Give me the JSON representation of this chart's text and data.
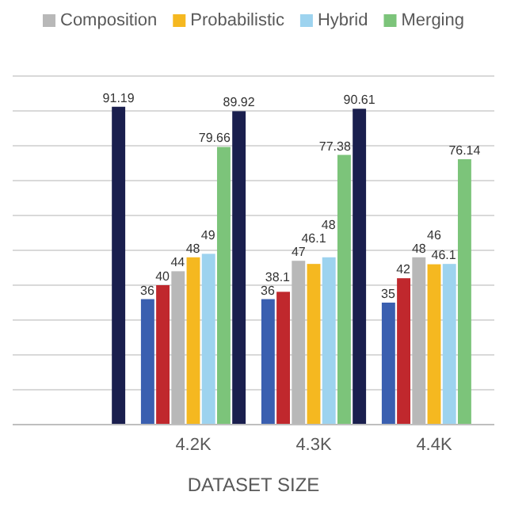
{
  "chart_data": {
    "type": "bar",
    "xlabel": "DATASET SIZE",
    "categories": [
      null,
      "4.2K",
      "4.3K",
      "4.4K"
    ],
    "series": [
      {
        "color": "#3a5fb0",
        "values": [
          null,
          36,
          36,
          35
        ]
      },
      {
        "color": "#c0282d",
        "values": [
          null,
          40,
          38.1,
          42
        ]
      },
      {
        "name": "Composition",
        "color": "#b8b8b8",
        "values": [
          null,
          44,
          47,
          48
        ]
      },
      {
        "name": "Probabilistic",
        "color": "#f5b820",
        "values": [
          null,
          48,
          46.1,
          46
        ]
      },
      {
        "name": "Hybrid",
        "color": "#9dd3ef",
        "values": [
          null,
          49,
          48,
          46.1
        ]
      },
      {
        "name": "Merging",
        "color": "#7cc47a",
        "values": [
          null,
          79.66,
          77.38,
          76.14
        ]
      },
      {
        "color": "#1a1f4e",
        "values": [
          91.19,
          89.92,
          90.61,
          null
        ]
      }
    ],
    "ylim": [
      0,
      100
    ],
    "yticks": [
      {
        "value": 0,
        "label": null
      },
      {
        "value": 10,
        "label": null
      },
      {
        "value": 20,
        "label": null
      },
      {
        "value": 30,
        "label": null
      },
      {
        "value": 40,
        "label": null
      },
      {
        "value": 50,
        "label": null
      },
      {
        "value": 60,
        "label": null
      },
      {
        "value": 70,
        "label": null
      },
      {
        "value": 80,
        "label": null
      },
      {
        "value": 90,
        "label": null
      },
      {
        "value": 100,
        "label": null
      }
    ],
    "grid": "y",
    "legend": "top",
    "data_labels": true,
    "tick_labels": "x"
  }
}
